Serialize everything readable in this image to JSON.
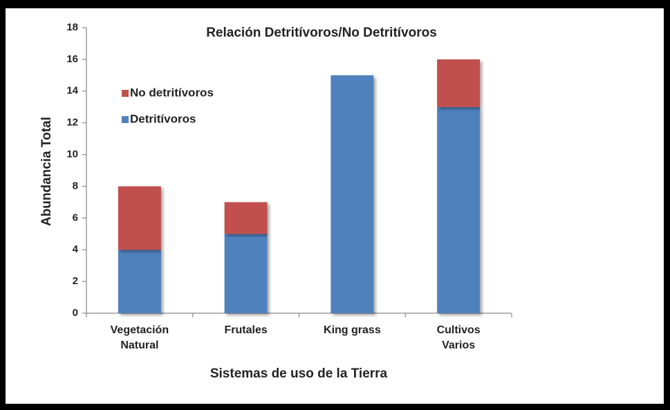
{
  "chart_data": {
    "type": "stacked_bar",
    "title": "Relación Detritívoros/No Detritívoros",
    "x_label": "Sistemas de uso de la Tierra",
    "y_label": "Abundancia Total",
    "categories": [
      "Vegetación\nNatural",
      "Frutales",
      "King grass",
      "Cultivos\nVarios"
    ],
    "series": [
      {
        "name": "Detritívoros",
        "color": "#4f81bd",
        "values": [
          4,
          5,
          15,
          13
        ]
      },
      {
        "name": "No detritívoros",
        "color": "#c0504d",
        "values": [
          4,
          2,
          0,
          3
        ]
      }
    ],
    "ylim": [
      0,
      18
    ],
    "yticks": [
      0,
      2,
      4,
      6,
      8,
      10,
      12,
      14,
      16,
      18
    ],
    "legend": "upper left"
  }
}
